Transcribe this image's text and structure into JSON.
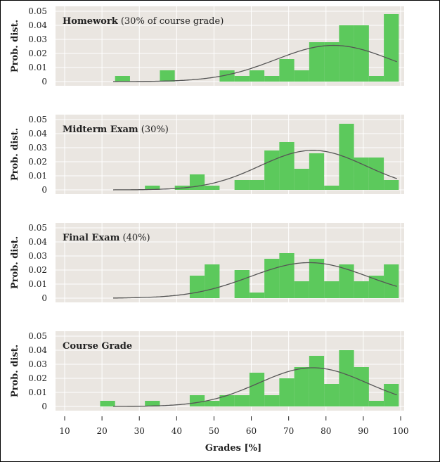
{
  "chart_data": [
    {
      "type": "bar",
      "title_bold": "Homework",
      "title_rest": " (30% of course grade)",
      "ylabel": "Prob. dist.",
      "ylim": [
        0,
        0.05
      ],
      "yticks": [
        "0",
        "0.01",
        "0.02",
        "0.03",
        "0.04",
        "0.05"
      ],
      "bin_width": 4,
      "bars": [
        [
          25.5,
          0.004
        ],
        [
          37.5,
          0.008
        ],
        [
          53.5,
          0.008
        ],
        [
          57.5,
          0.004
        ],
        [
          61.5,
          0.008
        ],
        [
          65.5,
          0.004
        ],
        [
          69.5,
          0.016
        ],
        [
          73.5,
          0.008
        ],
        [
          77.5,
          0.028
        ],
        [
          81.5,
          0.028
        ],
        [
          85.5,
          0.04
        ],
        [
          89.5,
          0.04
        ],
        [
          93.5,
          0.004
        ],
        [
          97.5,
          0.048
        ]
      ],
      "curve": {
        "mean": 82,
        "sd": 15.5,
        "x_start": 23,
        "x_end": 99
      }
    },
    {
      "type": "bar",
      "title_bold": "Midterm Exam",
      "title_rest": " (30%)",
      "ylabel": "Prob. dist.",
      "ylim": [
        0,
        0.05
      ],
      "yticks": [
        "0",
        "0.01",
        "0.02",
        "0.03",
        "0.04",
        "0.05"
      ],
      "bin_width": 4,
      "bars": [
        [
          33.5,
          0.003
        ],
        [
          41.5,
          0.003
        ],
        [
          45.5,
          0.011
        ],
        [
          49.5,
          0.003
        ],
        [
          57.5,
          0.007
        ],
        [
          61.5,
          0.007
        ],
        [
          65.5,
          0.028
        ],
        [
          69.5,
          0.034
        ],
        [
          73.5,
          0.015
        ],
        [
          77.5,
          0.026
        ],
        [
          81.5,
          0.003
        ],
        [
          85.5,
          0.047
        ],
        [
          89.5,
          0.023
        ],
        [
          93.5,
          0.023
        ],
        [
          97.5,
          0.007
        ]
      ],
      "curve": {
        "mean": 76.5,
        "sd": 14.2,
        "x_start": 23,
        "x_end": 99
      }
    },
    {
      "type": "bar",
      "title_bold": "Final Exam",
      "title_rest": " (40%)",
      "ylabel": "Prob. dist.",
      "ylim": [
        0,
        0.05
      ],
      "yticks": [
        "0",
        "0.01",
        "0.02",
        "0.03",
        "0.04",
        "0.05"
      ],
      "bin_width": 4,
      "bars": [
        [
          45.5,
          0.016
        ],
        [
          49.5,
          0.024
        ],
        [
          57.5,
          0.02
        ],
        [
          61.5,
          0.004
        ],
        [
          65.5,
          0.028
        ],
        [
          69.5,
          0.032
        ],
        [
          73.5,
          0.012
        ],
        [
          77.5,
          0.028
        ],
        [
          81.5,
          0.012
        ],
        [
          85.5,
          0.024
        ],
        [
          89.5,
          0.012
        ],
        [
          93.5,
          0.016
        ],
        [
          97.5,
          0.024
        ]
      ],
      "curve": {
        "mean": 75.5,
        "sd": 15.8,
        "x_start": 23,
        "x_end": 99
      }
    },
    {
      "type": "bar",
      "title_bold": "Course Grade",
      "title_rest": "",
      "ylabel": "Prob. dist.",
      "ylim": [
        0,
        0.05
      ],
      "yticks": [
        "0",
        "0.01",
        "0.02",
        "0.03",
        "0.04",
        "0.05"
      ],
      "xlabel": "Grades [%]",
      "xticks": [
        "10",
        "20",
        "30",
        "40",
        "50",
        "60",
        "70",
        "80",
        "90",
        "100"
      ],
      "xlim": [
        10,
        100
      ],
      "bin_width": 4,
      "bars": [
        [
          21.5,
          0.004
        ],
        [
          33.5,
          0.004
        ],
        [
          45.5,
          0.008
        ],
        [
          49.5,
          0.004
        ],
        [
          53.5,
          0.008
        ],
        [
          57.5,
          0.008
        ],
        [
          61.5,
          0.024
        ],
        [
          65.5,
          0.008
        ],
        [
          69.5,
          0.02
        ],
        [
          73.5,
          0.028
        ],
        [
          77.5,
          0.036
        ],
        [
          81.5,
          0.016
        ],
        [
          85.5,
          0.04
        ],
        [
          89.5,
          0.028
        ],
        [
          93.5,
          0.004
        ],
        [
          97.5,
          0.016
        ]
      ],
      "curve": {
        "mean": 76.5,
        "sd": 14.5,
        "x_start": 23,
        "x_end": 99
      }
    }
  ],
  "colors": {
    "panel_bg": "#eae6e1",
    "bar": "#5cc95c",
    "curve": "#555555",
    "grid": "#ffffff"
  }
}
